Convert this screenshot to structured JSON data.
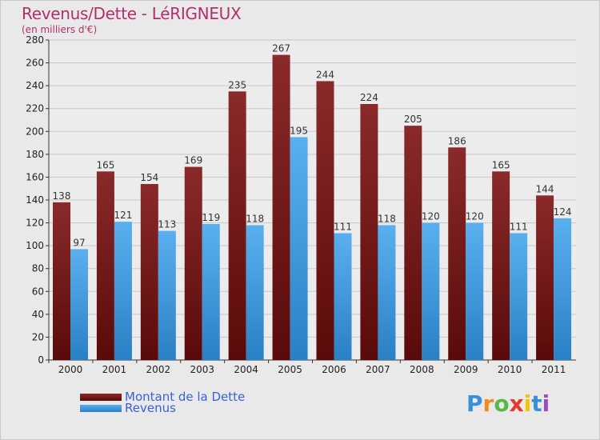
{
  "chart_data": {
    "type": "bar",
    "title": "Revenus/Dette - LéRIGNEUX",
    "subtitle": "(en milliers d'€)",
    "categories": [
      "2000",
      "2001",
      "2002",
      "2003",
      "2004",
      "2005",
      "2006",
      "2007",
      "2008",
      "2009",
      "2010",
      "2011"
    ],
    "series": [
      {
        "name": "Montant de la Dette",
        "color": "#7a1b1b",
        "values": [
          138,
          165,
          154,
          169,
          235,
          267,
          244,
          224,
          205,
          186,
          165,
          144
        ]
      },
      {
        "name": "Revenus",
        "color": "#4a9fe0",
        "values": [
          97,
          121,
          113,
          119,
          118,
          195,
          111,
          118,
          120,
          120,
          111,
          124
        ]
      }
    ],
    "ylim": [
      0,
      280
    ],
    "yticks": [
      0,
      20,
      40,
      60,
      80,
      100,
      120,
      140,
      160,
      180,
      200,
      220,
      240,
      260,
      280
    ],
    "grid": true,
    "legend_position": "bottom-left"
  },
  "logo": {
    "letters": [
      "P",
      "r",
      "o",
      "x",
      "i",
      "t",
      "i"
    ],
    "colors": [
      "#3a8fd8",
      "#f28c1e",
      "#58b848",
      "#e03a2a",
      "#f5c400",
      "#3a8fd8",
      "#9a4ec0"
    ]
  }
}
